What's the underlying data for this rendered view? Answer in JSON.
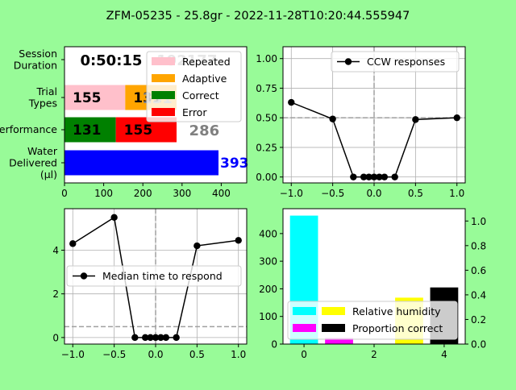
{
  "figure": {
    "title": "ZFM-05235 - 25.8gr - 2022-11-28T10:20:44.555947",
    "background": "#98fb98"
  },
  "chart_data": [
    {
      "type": "bar",
      "orientation": "horizontal",
      "panel": "top-left",
      "categories": [
        "Session\nDuration",
        "Trial\nTypes",
        "Performance",
        "Water\nDelivered\n(µl)"
      ],
      "xlim": [
        0,
        465
      ],
      "xticks": [
        0,
        100,
        200,
        300,
        400
      ],
      "segments": [
        {
          "row": 1,
          "start": 0,
          "value": 155,
          "color": "#ffc0cb",
          "label": "155",
          "label_color": "#000000"
        },
        {
          "row": 1,
          "start": 155,
          "value": 131,
          "color": "#ffa500",
          "label": "131",
          "label_color": "#000000"
        },
        {
          "row": 2,
          "start": 0,
          "value": 131,
          "color": "#008000",
          "label": "131",
          "label_color": "#000000"
        },
        {
          "row": 2,
          "start": 131,
          "value": 155,
          "color": "#ff0000",
          "label": "155",
          "label_color": "#000000"
        },
        {
          "row": 3,
          "start": 0,
          "value": 393,
          "color": "#0000ff",
          "label": "393",
          "label_color": "#0000ff"
        }
      ],
      "annotations": [
        {
          "text": "0:50:15",
          "row": 0,
          "x": 40,
          "color": "#000000",
          "bold": true
        },
        {
          "text": "192177",
          "row": 0,
          "x": 235,
          "color": "#808080",
          "bold": true
        },
        {
          "text": "286",
          "row": 2,
          "x": 318,
          "color": "#808080",
          "bold": true
        },
        {
          "text": "131",
          "row": 1,
          "x": 198,
          "color": "#808080",
          "bold": true
        }
      ],
      "legend": {
        "position": "top-right",
        "entries": [
          {
            "label": "Repeated",
            "color": "#ffc0cb"
          },
          {
            "label": "Adaptive",
            "color": "#ffa500"
          },
          {
            "label": "Correct",
            "color": "#008000"
          },
          {
            "label": "Error",
            "color": "#ff0000"
          }
        ]
      }
    },
    {
      "type": "line",
      "panel": "top-right",
      "series": [
        {
          "name": "CCW responses",
          "color": "#000000",
          "x": [
            -1.0,
            -0.5,
            -0.25,
            -0.125,
            -0.0625,
            0.0,
            0.0625,
            0.125,
            0.25,
            0.5,
            1.0
          ],
          "y": [
            0.63,
            0.49,
            0.0,
            0.0,
            0.0,
            0.0,
            0.0,
            0.0,
            0.0,
            0.485,
            0.5
          ]
        }
      ],
      "xlim": [
        -1.1,
        1.1
      ],
      "ylim": [
        -0.05,
        1.1
      ],
      "xticks": [
        -1.0,
        -0.5,
        0.0,
        0.5,
        1.0
      ],
      "yticks": [
        0.0,
        0.25,
        0.5,
        0.75,
        1.0
      ],
      "xtick_labels": [
        "−1.0",
        "−0.5",
        "0.0",
        "0.5",
        "1.0"
      ],
      "ytick_labels": [
        "0.00",
        "0.25",
        "0.50",
        "0.75",
        "1.00"
      ],
      "grid": true,
      "ref_vline": 0.0,
      "ref_hline": 0.5,
      "legend": {
        "position": "top-right"
      }
    },
    {
      "type": "line",
      "panel": "bottom-left",
      "series": [
        {
          "name": "Median time to respond",
          "color": "#000000",
          "x": [
            -1.0,
            -0.5,
            -0.25,
            -0.125,
            -0.0625,
            0.0,
            0.0625,
            0.125,
            0.25,
            0.5,
            1.0
          ],
          "y": [
            4.3,
            5.5,
            0.0,
            0.0,
            0.0,
            0.0,
            0.0,
            0.0,
            0.0,
            4.2,
            4.45
          ]
        }
      ],
      "xlim": [
        -1.1,
        1.1
      ],
      "ylim": [
        -0.3,
        5.9
      ],
      "xticks": [
        -1.0,
        -0.5,
        0.0,
        0.5,
        1.0
      ],
      "yticks": [
        0,
        2,
        4
      ],
      "xtick_labels": [
        "−1.0",
        "−0.5",
        "0.0",
        "0.5",
        "1.0"
      ],
      "ytick_labels": [
        "0",
        "2",
        "4"
      ],
      "grid": true,
      "ref_vline": 0.0,
      "ref_hline": 0.5,
      "legend": {
        "position": "center"
      }
    },
    {
      "type": "bar",
      "panel": "bottom-right",
      "categories": [
        0,
        1,
        2,
        3,
        4
      ],
      "xlim": [
        -0.6,
        4.6
      ],
      "ylim_left": [
        0,
        490
      ],
      "ylim_right": [
        0,
        1.1
      ],
      "xticks": [
        0,
        2,
        4
      ],
      "yticks_left": [
        0,
        100,
        200,
        300,
        400
      ],
      "yticks_right": [
        0.0,
        0.2,
        0.4,
        0.6,
        0.8,
        1.0
      ],
      "ytick_labels_right": [
        "0.0",
        "0.2",
        "0.4",
        "0.6",
        "0.8",
        "1.0"
      ],
      "bars": [
        {
          "x": 0,
          "value": 465,
          "color": "#00ffff"
        },
        {
          "x": 1,
          "value": 22,
          "color": "#ff00ff"
        },
        {
          "x": 3,
          "value": 168,
          "color": "#ffff00"
        },
        {
          "x": 4,
          "value": 205,
          "color": "#000000"
        }
      ],
      "legend": {
        "position": "lower-right",
        "entries": [
          {
            "label": "",
            "color": "#00ffff"
          },
          {
            "label": "Relative humidity",
            "color": "#ffff00"
          },
          {
            "label": "",
            "color": "#ff00ff"
          },
          {
            "label": "Proportion correct",
            "color": "#000000"
          }
        ]
      }
    }
  ]
}
